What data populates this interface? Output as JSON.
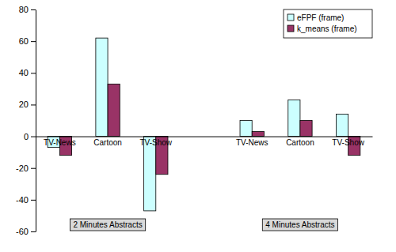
{
  "chart_data": {
    "type": "bar",
    "categories": [
      "TV-News",
      "Cartoon",
      "TV-Show",
      null,
      "TV-News",
      "Cartoon",
      "TV-Show"
    ],
    "series": [
      {
        "name": "eFPF (frame)",
        "color": "#ccffff",
        "values": [
          -7,
          62,
          -47,
          null,
          10,
          23,
          14
        ]
      },
      {
        "name": "k_means (frame)",
        "color": "#993366",
        "values": [
          -12,
          33,
          -24,
          null,
          3,
          10,
          -12
        ]
      }
    ],
    "annotations": [
      "2 Minutes Abstracts",
      "4 Minutes Abstracts"
    ],
    "ylim": [
      -60,
      80
    ],
    "yticks": [
      -60,
      -40,
      -20,
      0,
      20,
      40,
      60,
      80
    ],
    "legend": "upper right",
    "grid": false
  }
}
